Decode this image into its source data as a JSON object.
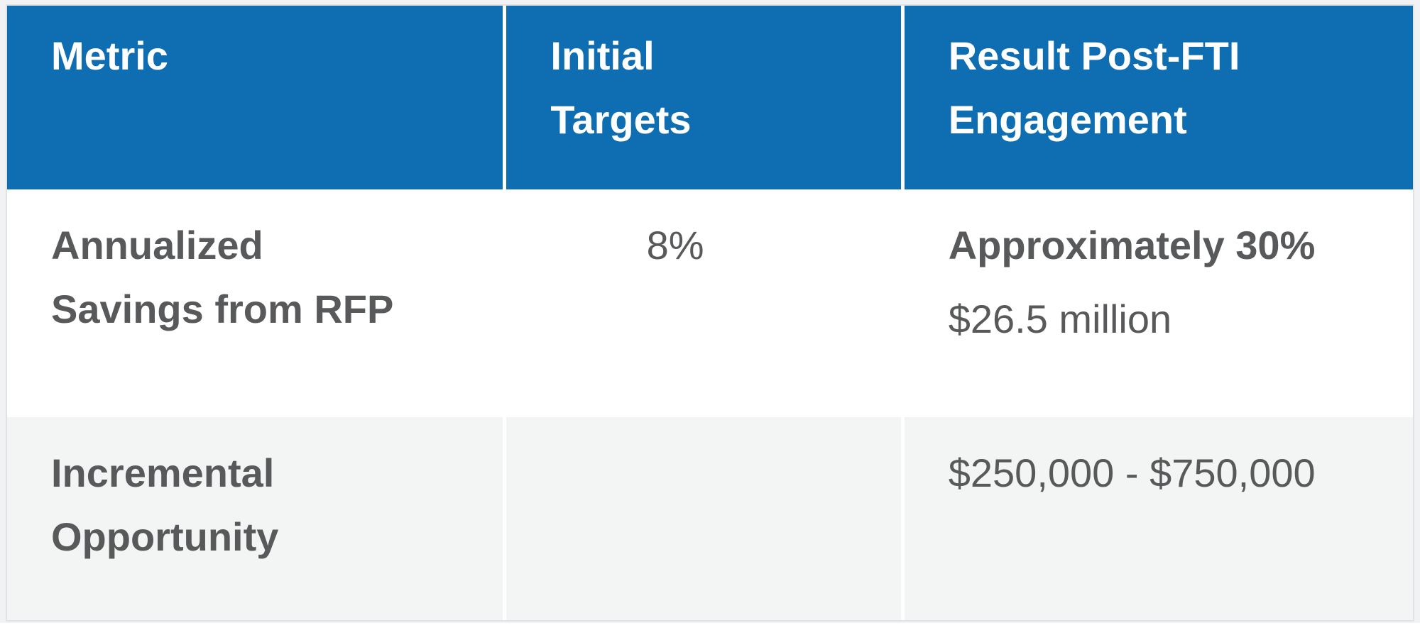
{
  "colors": {
    "header_bg": "#0F6DB2",
    "header_text": "#FFFFFF",
    "body_text": "#58595B",
    "row_bg": "#FFFFFF",
    "row_alt_bg": "#F3F4F4",
    "divider": "#FFFFFF",
    "outer_border": "#DFE3E8",
    "page_bg": "#F0F2F4"
  },
  "table": {
    "columns": [
      {
        "key": "metric",
        "label": "Metric"
      },
      {
        "key": "initial_targets",
        "label": "Initial Targets"
      },
      {
        "key": "result_post_fti",
        "label": "Result Post-FTI Engagement"
      }
    ],
    "rows": [
      {
        "metric": "Annualized Savings from RFP",
        "initial_targets": "8%",
        "result_emphasis": "Approximately 30%",
        "result_detail": "$26.5 million"
      },
      {
        "metric": "Incremental Opportunity",
        "initial_targets": "",
        "result_detail": "$250,000 - $750,000"
      }
    ]
  }
}
